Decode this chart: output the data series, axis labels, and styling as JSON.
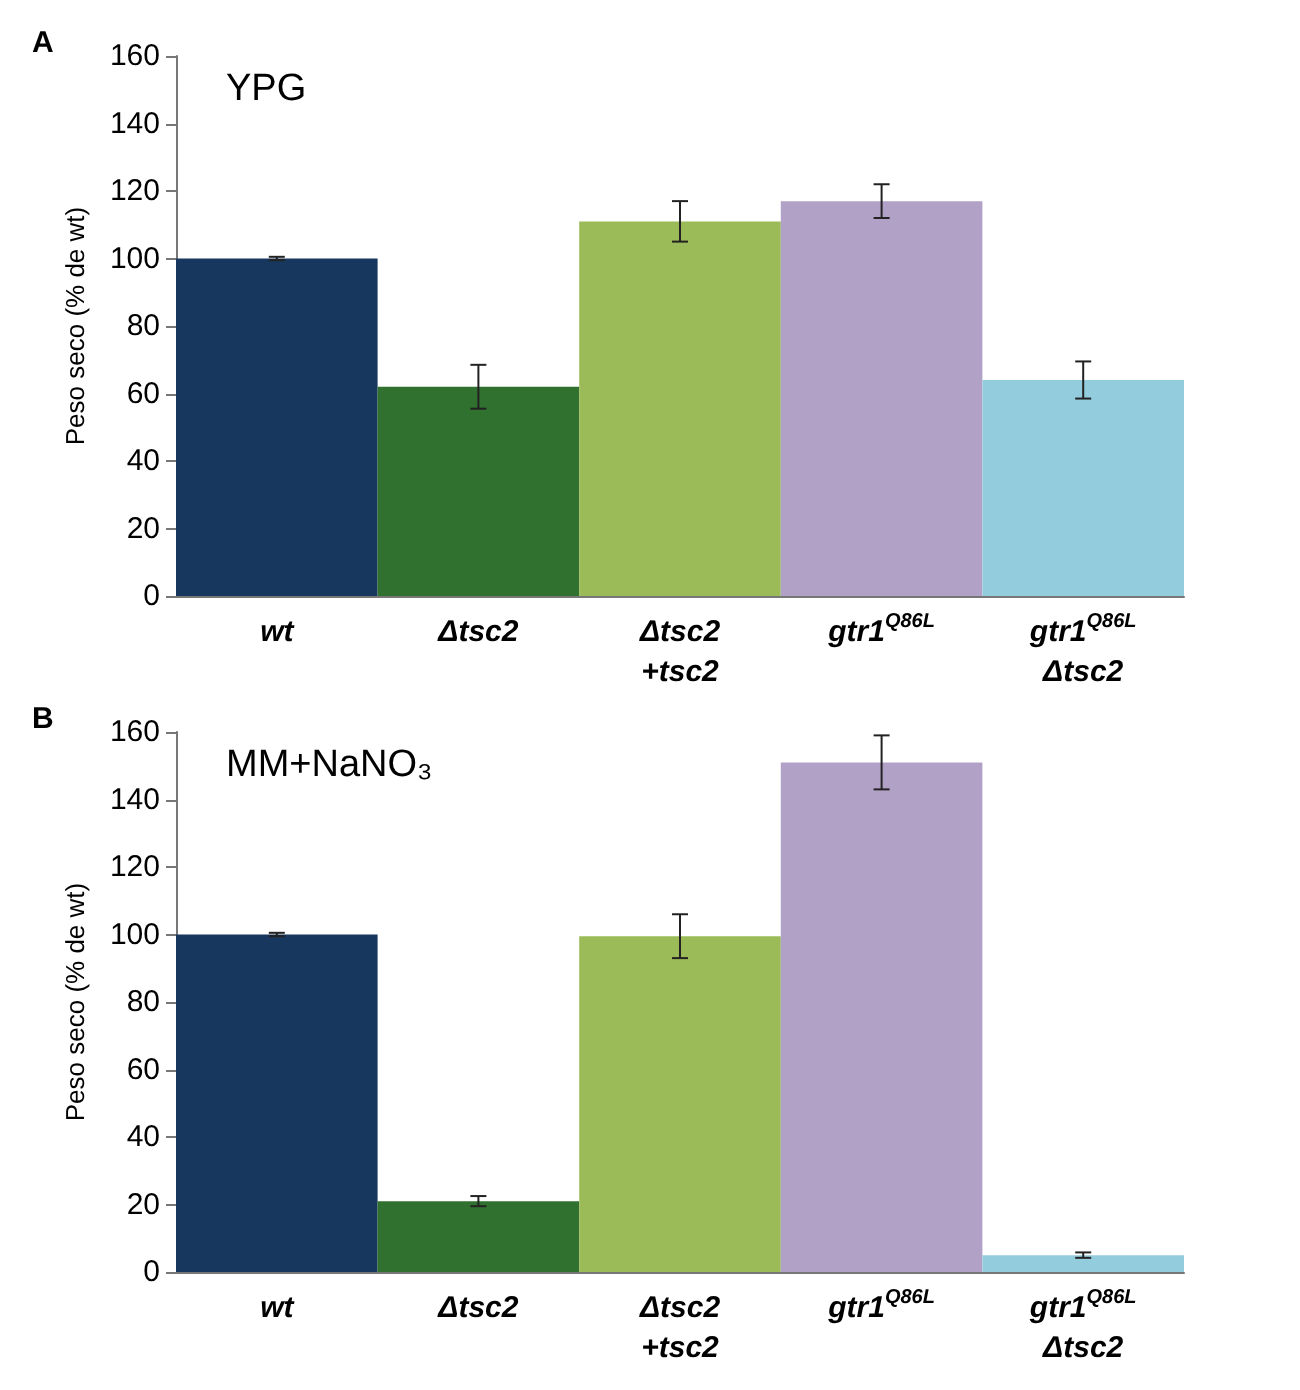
{
  "chart_data": [
    {
      "type": "bar",
      "title": "YPG",
      "ylabel": "Peso seco (% de wt)",
      "annotations": [
        "A"
      ],
      "categories": [
        "wt",
        "Δtsc2",
        "Δtsc2\n+tsc2",
        "gtr1$^{Q86L}$",
        "gtr1$^{Q86L}$\nΔtsc2"
      ],
      "values": [
        100,
        62,
        111,
        117,
        64
      ],
      "errors": [
        0.5,
        6.5,
        6,
        5,
        5.5
      ],
      "colors": [
        "#17375e",
        "#31712f",
        "#9bbb59",
        "#b2a1c7",
        "#93cddd"
      ],
      "ylim": [
        0,
        160
      ],
      "yticks": [
        0,
        20,
        40,
        60,
        80,
        100,
        120,
        140,
        160
      ],
      "grid": false
    },
    {
      "type": "bar",
      "title": "MM+NaNO₃",
      "ylabel": "Peso seco (% de wt)",
      "annotations": [
        "B"
      ],
      "categories": [
        "wt",
        "Δtsc2",
        "Δtsc2\n+tsc2",
        "gtr1$^{Q86L}$",
        "gtr1$^{Q86L}$\nΔtsc2"
      ],
      "values": [
        100,
        21,
        99.5,
        151,
        5
      ],
      "errors": [
        0.5,
        1.5,
        6.5,
        8,
        0.8
      ],
      "colors": [
        "#17375e",
        "#31712f",
        "#9bbb59",
        "#b2a1c7",
        "#93cddd"
      ],
      "ylim": [
        0,
        160
      ],
      "yticks": [
        0,
        20,
        40,
        60,
        80,
        100,
        120,
        140,
        160
      ],
      "grid": false
    }
  ]
}
